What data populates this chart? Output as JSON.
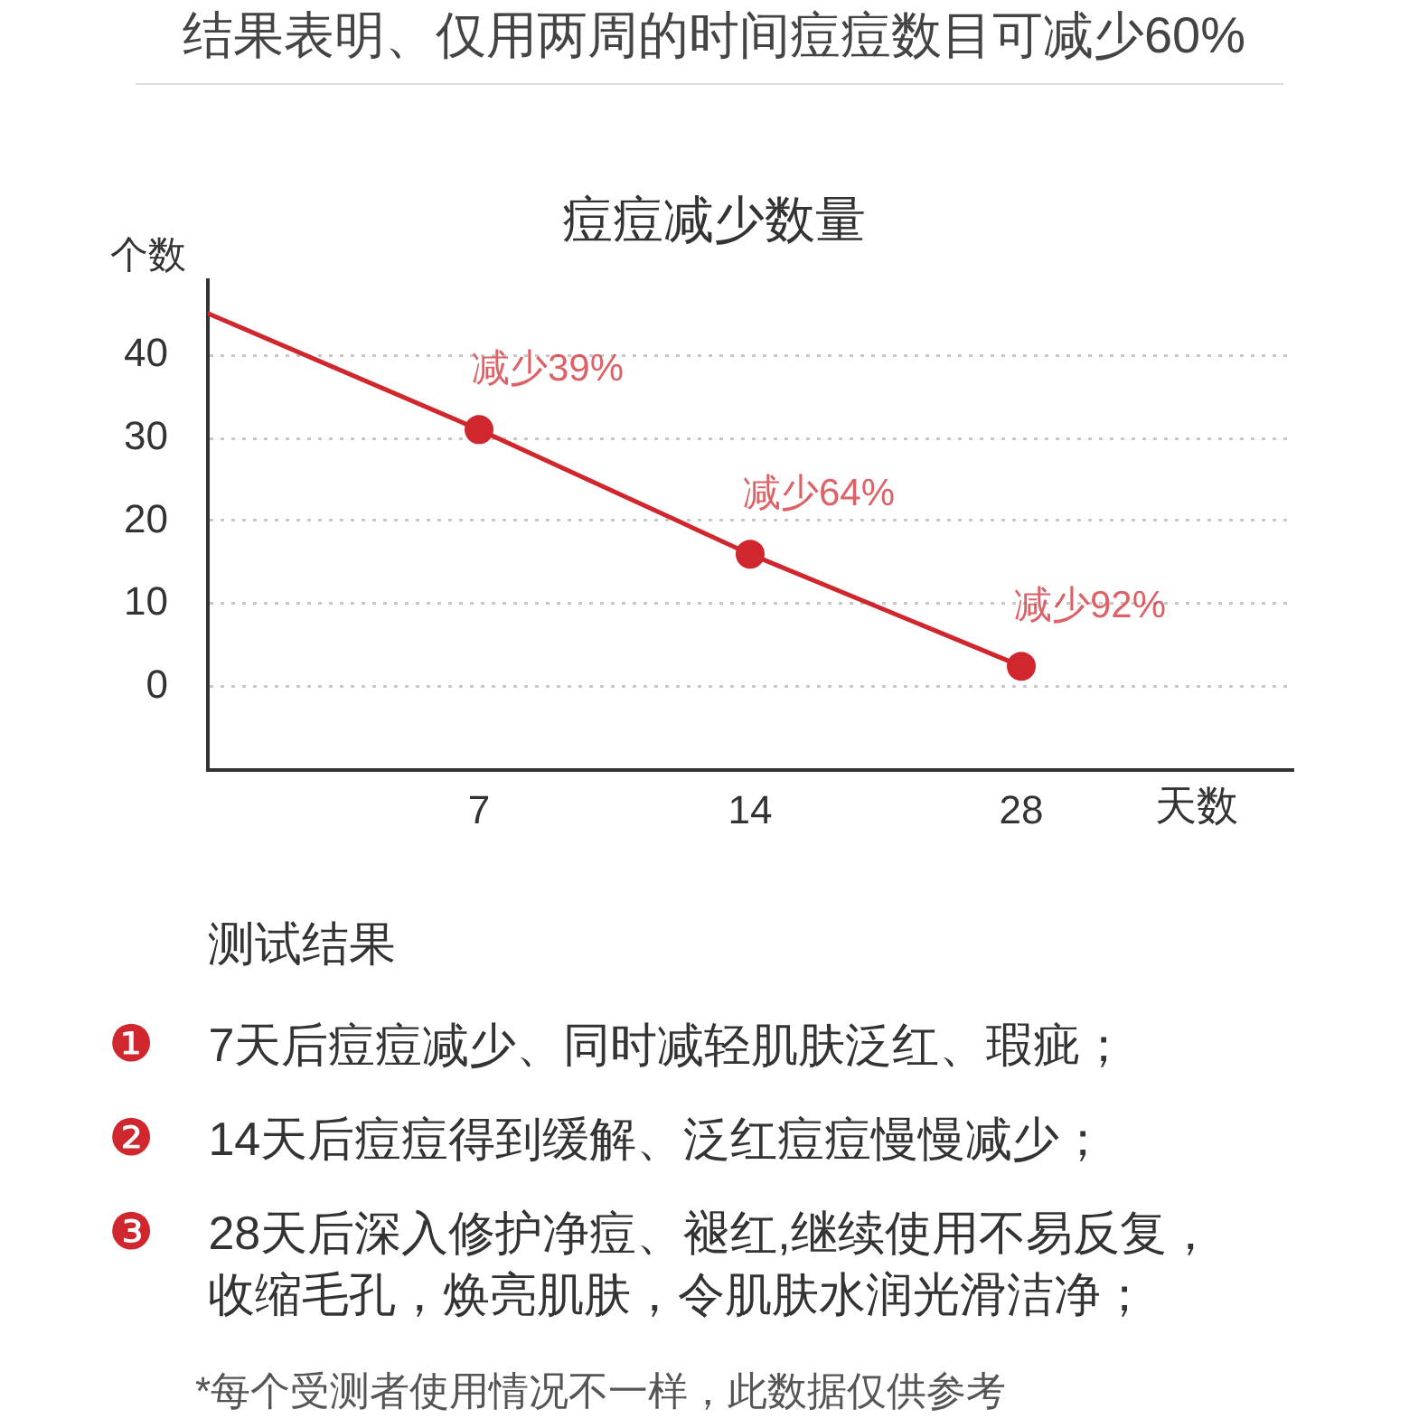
{
  "chart_data": {
    "type": "line",
    "title": "结果表明、仅用两周的时间痘痘数目可减少60%",
    "subtitle": "痘痘减少数量",
    "xlabel": "天数",
    "ylabel": "个数",
    "categories": [
      null,
      "7",
      "14",
      "28"
    ],
    "values": [
      45,
      31,
      16,
      2.5
    ],
    "color": "#d0262d",
    "value_labels": [
      null,
      "减少39%",
      "减少64%",
      "减少92%"
    ],
    "ylim": [
      -10,
      49
    ],
    "yticks": [
      0,
      10,
      20,
      30,
      40
    ],
    "grid": "y",
    "marker": "circle",
    "line_style": "solid",
    "annotations": [
      "测试结果",
      "❶ 7天后痘痘减少、同时减轻肌肤泛红、瑕疵；",
      "❷ 14天后痘痘得到缓解、泛红痘痘慢慢减少；",
      "❸ 28天后深入修护净痘、褪红,继续使用不易反复，收缩毛孔，焕亮肌肤，令肌肤水润光滑洁净；",
      "*每个受测者使用情况不一样，此数据仅供参考"
    ]
  }
}
